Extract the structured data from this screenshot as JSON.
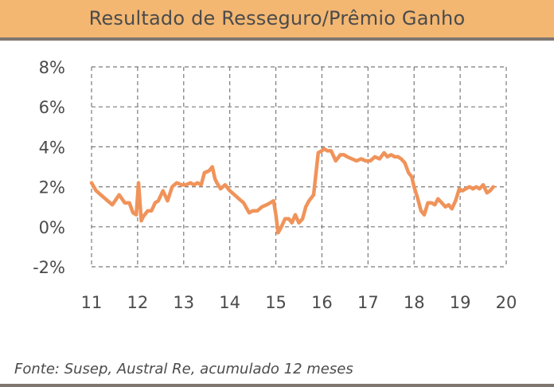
{
  "title": "Resultado de Resseguro/Prêmio Ganho",
  "source": "Fonte: Susep, Austral Re, acumulado 12 meses",
  "colors": {
    "line": "#f0935a",
    "header_bg": "#f3b772",
    "text": "#4b4b4b",
    "grid": "#7a7a7a"
  },
  "chart_data": {
    "type": "line",
    "title": "Resultado de Resseguro/Prêmio Ganho",
    "xlabel": "",
    "ylabel": "",
    "x_ticks": [
      "11",
      "12",
      "13",
      "14",
      "15",
      "16",
      "17",
      "18",
      "19",
      "20"
    ],
    "y_ticks": [
      "8%",
      "6%",
      "4%",
      "2%",
      "0%",
      "-2%"
    ],
    "xlim": [
      2011,
      2020
    ],
    "ylim": [
      -2,
      8
    ],
    "grid": true,
    "series": [
      {
        "x": [
          2011.0,
          2011.1,
          2011.25,
          2011.45,
          2011.6,
          2011.72,
          2011.82,
          2011.9,
          2011.97,
          2012.02,
          2012.08,
          2012.12,
          2012.22,
          2012.3,
          2012.38,
          2012.45,
          2012.55,
          2012.65,
          2012.75,
          2012.85,
          2012.95,
          2013.05,
          2013.15,
          2013.22,
          2013.3,
          2013.38,
          2013.45,
          2013.55,
          2013.62,
          2013.68,
          2013.72,
          2013.8,
          2013.9,
          2014.0,
          2014.1,
          2014.2,
          2014.3,
          2014.42,
          2014.5,
          2014.6,
          2014.7,
          2014.8,
          2014.88,
          2014.95,
          2015.0,
          2015.05,
          2015.12,
          2015.2,
          2015.28,
          2015.35,
          2015.42,
          2015.5,
          2015.58,
          2015.65,
          2015.72,
          2015.82,
          2015.92,
          2016.0,
          2016.05,
          2016.12,
          2016.2,
          2016.3,
          2016.4,
          2016.48,
          2016.55,
          2016.65,
          2016.75,
          2016.85,
          2016.95,
          2017.05,
          2017.15,
          2017.25,
          2017.35,
          2017.42,
          2017.5,
          2017.58,
          2017.65,
          2017.72,
          2017.8,
          2017.88,
          2017.95,
          2018.0,
          2018.08,
          2018.15,
          2018.22,
          2018.3,
          2018.38,
          2018.45,
          2018.52,
          2018.6,
          2018.68,
          2018.75,
          2018.82,
          2018.9,
          2018.98,
          2019.05,
          2019.12,
          2019.2,
          2019.28,
          2019.35,
          2019.42,
          2019.5,
          2019.58,
          2019.65,
          2019.72
        ],
        "y": [
          2.2,
          1.8,
          1.5,
          1.1,
          1.6,
          1.2,
          1.2,
          0.7,
          0.6,
          2.2,
          0.3,
          0.5,
          0.8,
          0.8,
          1.2,
          1.3,
          1.8,
          1.3,
          2.0,
          2.2,
          2.1,
          2.1,
          2.2,
          2.1,
          2.2,
          2.1,
          2.7,
          2.8,
          3.0,
          2.4,
          2.2,
          1.9,
          2.1,
          1.8,
          1.6,
          1.4,
          1.2,
          0.7,
          0.8,
          0.8,
          1.0,
          1.1,
          1.2,
          1.3,
          0.6,
          -0.3,
          0.0,
          0.4,
          0.4,
          0.2,
          0.6,
          0.2,
          0.4,
          1.0,
          1.3,
          1.6,
          3.7,
          3.8,
          3.9,
          3.8,
          3.8,
          3.3,
          3.6,
          3.6,
          3.5,
          3.4,
          3.3,
          3.4,
          3.3,
          3.3,
          3.5,
          3.4,
          3.7,
          3.5,
          3.6,
          3.5,
          3.5,
          3.4,
          3.2,
          2.7,
          2.5,
          2.0,
          1.4,
          0.8,
          0.6,
          1.2,
          1.2,
          1.1,
          1.4,
          1.2,
          1.0,
          1.1,
          0.9,
          1.3,
          1.9,
          1.8,
          1.9,
          2.0,
          1.9,
          2.0,
          1.9,
          2.1,
          1.7,
          1.8,
          2.0
        ]
      }
    ]
  }
}
